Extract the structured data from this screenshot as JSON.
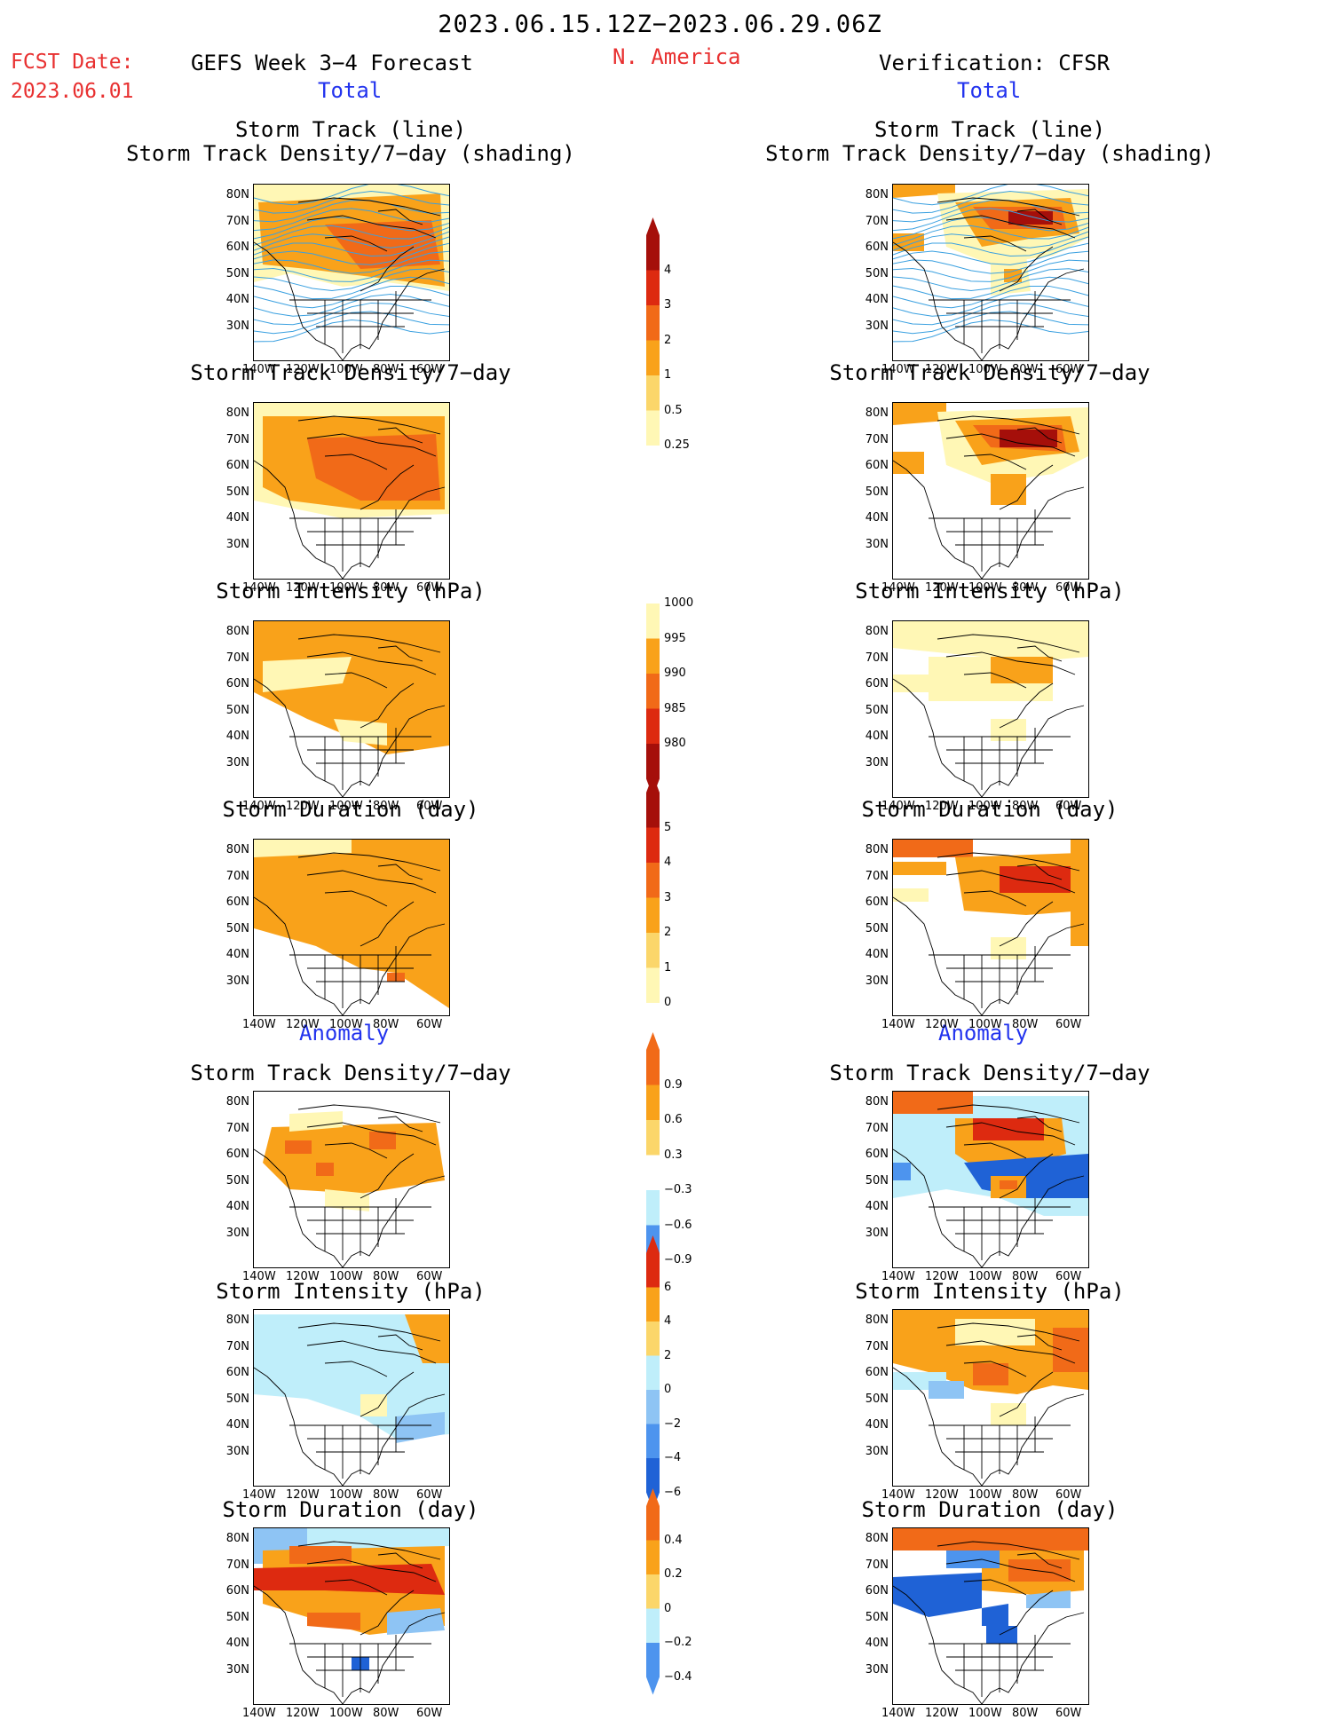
{
  "header": {
    "title": "2023.06.15.12Z−2023.06.29.06Z",
    "fcst_label": "FCST Date:",
    "fcst_date": "2023.06.01",
    "left_title": "GEFS Week 3−4 Forecast",
    "region": "N. America",
    "right_title": "Verification: CFSR"
  },
  "sections": {
    "total": "Total",
    "anomaly": "Anomaly"
  },
  "panel_titles": {
    "track_1": "Storm Track (line)",
    "track_2": "Storm Track Density/7−day (shading)",
    "density": "Storm Track Density/7−day",
    "intensity": "Storm Intensity (hPa)",
    "duration": "Storm Duration (day)"
  },
  "axes": {
    "lat_ticks": [
      "80N",
      "70N",
      "60N",
      "50N",
      "40N",
      "30N"
    ],
    "lon_ticks": [
      "140W",
      "120W",
      "100W",
      "80W",
      "60W"
    ]
  },
  "colorbars": {
    "density_total": [
      "4",
      "3",
      "2",
      "1",
      "0.5",
      "0.25"
    ],
    "intensity_total": [
      "1000",
      "995",
      "990",
      "985",
      "980"
    ],
    "duration_total": [
      "5",
      "4",
      "3",
      "2",
      "1",
      "0"
    ],
    "density_anom": [
      "0.9",
      "0.6",
      "0.3",
      "−0.3",
      "−0.6",
      "−0.9"
    ],
    "intensity_anom": [
      "6",
      "4",
      "2",
      "0",
      "−2",
      "−4",
      "−6"
    ],
    "duration_anom": [
      "0.4",
      "0.2",
      "0",
      "−0.2",
      "−0.4"
    ]
  },
  "colors": {
    "title_red": "#e83030",
    "section_blue": "#2233ee",
    "light_yellow": "#fff7b5",
    "yellow": "#fbd66a",
    "orange": "#f9a21a",
    "orange_red": "#f16a18",
    "red": "#dd2a10",
    "dark_red": "#a50f0a",
    "light_blue": "#bfeefa",
    "blue": "#8ec4f4",
    "mid_blue": "#4d94ee",
    "dark_blue": "#1f62d6"
  }
}
